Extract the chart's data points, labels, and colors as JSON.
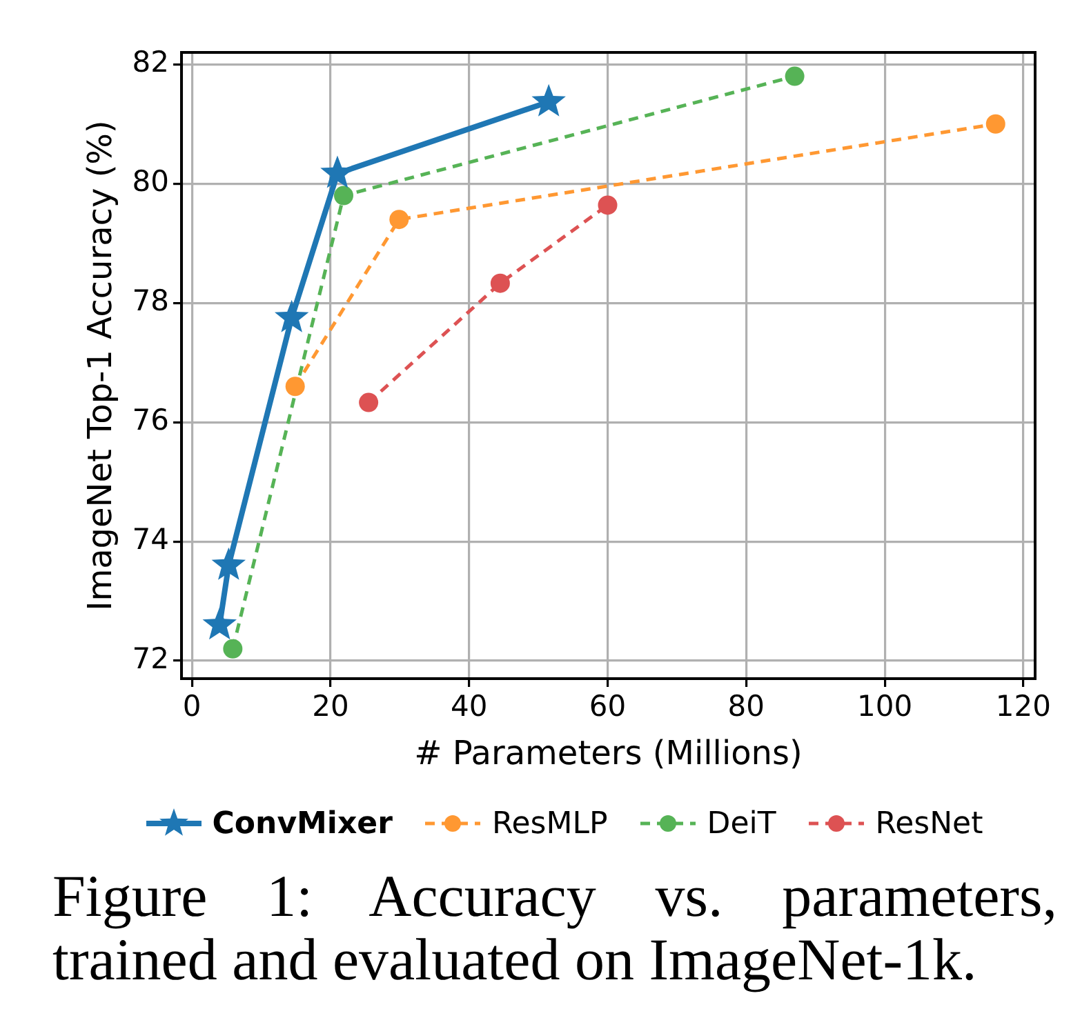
{
  "chart_data": {
    "type": "line",
    "xlabel": "# Parameters (Millions)",
    "ylabel": "ImageNet Top-1 Accuracy (%)",
    "xlim": [
      -1.5,
      121.7
    ],
    "xticks": [
      0,
      20,
      40,
      60,
      80,
      100,
      120
    ],
    "ylim": [
      71.7,
      82.2
    ],
    "yticks": [
      72,
      74,
      76,
      78,
      80,
      82
    ],
    "grid": true,
    "legend": "bottom",
    "series": [
      {
        "name": "ConvMixer",
        "color": "#1f77b4",
        "marker": "star",
        "line_style": "solid",
        "x": [
          4.0,
          5.3,
          14.4,
          21.0,
          51.5
        ],
        "values": [
          72.6,
          73.6,
          77.75,
          80.17,
          81.37
        ]
      },
      {
        "name": "ResMLP",
        "color": "#ff9832",
        "marker": "circle",
        "line_style": "dashed",
        "x": [
          14.9,
          29.9,
          116
        ],
        "values": [
          76.6,
          79.4,
          81.0
        ]
      },
      {
        "name": "DeiT",
        "color": "#56b356",
        "marker": "circle",
        "line_style": "dashed",
        "x": [
          5.9,
          21.9,
          87
        ],
        "values": [
          72.2,
          79.8,
          81.8
        ]
      },
      {
        "name": "ResNet",
        "color": "#dd5253",
        "marker": "circle",
        "line_style": "dashed",
        "x": [
          25.5,
          44.5,
          60.0
        ],
        "values": [
          76.33,
          78.33,
          79.64
        ]
      }
    ],
    "annotations": [
      "Figure 1: Accuracy vs. parameters, trained and evaluated on ImageNet-1k."
    ]
  }
}
